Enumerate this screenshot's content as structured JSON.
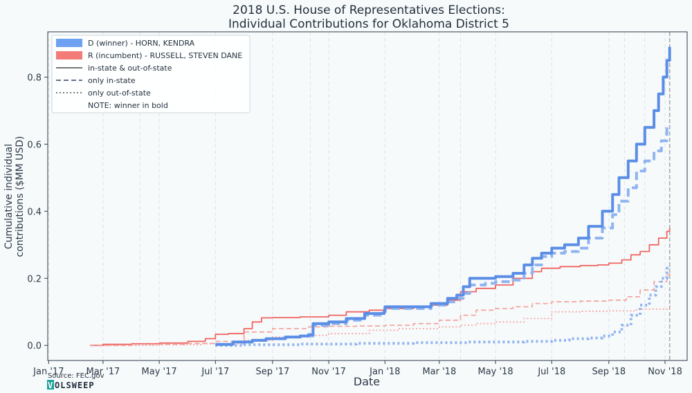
{
  "chart_data": {
    "type": "line",
    "title_line1": "2018 U.S. House of Representatives Elections:",
    "title_line2": "Individual Contributions for Oklahoma District 5",
    "xlabel": "Date",
    "ylabel_line1": "Cumulative individual",
    "ylabel_line2": "contributions ($MM USD)",
    "xlim": [
      "2016-12-31",
      "2018-11-25"
    ],
    "ylim": [
      -0.045,
      0.935
    ],
    "x_ticks": [
      {
        "date": "2017-01-01",
        "label": "Jan '17"
      },
      {
        "date": "2017-03-01",
        "label": "Mar '17"
      },
      {
        "date": "2017-05-01",
        "label": "May '17"
      },
      {
        "date": "2017-07-01",
        "label": "Jul '17"
      },
      {
        "date": "2017-09-01",
        "label": "Sep '17"
      },
      {
        "date": "2017-11-01",
        "label": "Nov '17"
      },
      {
        "date": "2018-01-01",
        "label": "Jan '18"
      },
      {
        "date": "2018-03-01",
        "label": "Mar '18"
      },
      {
        "date": "2018-05-01",
        "label": "May '18"
      },
      {
        "date": "2018-07-01",
        "label": "Jul '18"
      },
      {
        "date": "2018-09-01",
        "label": "Sep '18"
      },
      {
        "date": "2018-11-01",
        "label": "Nov '18"
      }
    ],
    "y_ticks": [
      {
        "value": 0.0,
        "label": "0.0"
      },
      {
        "value": 0.2,
        "label": "0.2"
      },
      {
        "value": 0.4,
        "label": "0.4"
      },
      {
        "value": 0.6,
        "label": "0.6"
      },
      {
        "value": 0.8,
        "label": "0.8"
      }
    ],
    "event_lines": [
      "2017-04-10",
      "2017-10-12",
      "2018-03-24",
      "2018-09-18",
      "2018-10-10"
    ],
    "election_line": "2018-11-06",
    "grid": "vertical dashed",
    "legend_position": "top-left",
    "legend": [
      {
        "kind": "patch",
        "color": "#6fa1f2",
        "label": "D (winner) - HORN, KENDRA"
      },
      {
        "kind": "patch",
        "color": "#f47c78",
        "label": "R (incumbent) - RUSSELL, STEVEN DANE"
      },
      {
        "kind": "solid",
        "color": "#777777",
        "label": "in-state & out-of-state"
      },
      {
        "kind": "dashed",
        "color": "#65708a",
        "label": "only in-state"
      },
      {
        "kind": "dotted",
        "color": "#777777",
        "label": "only out-of-state"
      },
      {
        "kind": "none",
        "color": "",
        "label": "NOTE: winner in bold"
      }
    ],
    "series": [
      {
        "name": "D (winner) - HORN, KENDRA",
        "variant": "in-state & out-of-state",
        "color": "#5b8ee6",
        "style": "solid",
        "bold": true,
        "points": [
          [
            "2017-07-01",
            0.003
          ],
          [
            "2017-07-20",
            0.01
          ],
          [
            "2017-08-10",
            0.015
          ],
          [
            "2017-08-25",
            0.02
          ],
          [
            "2017-09-15",
            0.025
          ],
          [
            "2017-10-01",
            0.028
          ],
          [
            "2017-10-10",
            0.032
          ],
          [
            "2017-10-15",
            0.065
          ],
          [
            "2017-11-01",
            0.07
          ],
          [
            "2017-11-20",
            0.08
          ],
          [
            "2017-12-10",
            0.095
          ],
          [
            "2017-12-31",
            0.1
          ],
          [
            "2018-01-01",
            0.115
          ],
          [
            "2018-02-01",
            0.115
          ],
          [
            "2018-02-20",
            0.125
          ],
          [
            "2018-03-10",
            0.14
          ],
          [
            "2018-03-20",
            0.15
          ],
          [
            "2018-03-27",
            0.175
          ],
          [
            "2018-04-03",
            0.2
          ],
          [
            "2018-04-20",
            0.2
          ],
          [
            "2018-05-01",
            0.205
          ],
          [
            "2018-05-20",
            0.215
          ],
          [
            "2018-06-01",
            0.24
          ],
          [
            "2018-06-10",
            0.26
          ],
          [
            "2018-06-20",
            0.275
          ],
          [
            "2018-07-01",
            0.29
          ],
          [
            "2018-07-15",
            0.3
          ],
          [
            "2018-07-30",
            0.32
          ],
          [
            "2018-08-10",
            0.355
          ],
          [
            "2018-08-25",
            0.4
          ],
          [
            "2018-09-05",
            0.45
          ],
          [
            "2018-09-12",
            0.5
          ],
          [
            "2018-09-22",
            0.55
          ],
          [
            "2018-10-01",
            0.6
          ],
          [
            "2018-10-10",
            0.65
          ],
          [
            "2018-10-20",
            0.7
          ],
          [
            "2018-10-25",
            0.75
          ],
          [
            "2018-10-30",
            0.8
          ],
          [
            "2018-11-03",
            0.85
          ],
          [
            "2018-11-06",
            0.89
          ]
        ]
      },
      {
        "name": "D (winner) - HORN, KENDRA",
        "variant": "only in-state",
        "color": "#8fb4ef",
        "style": "dashed",
        "bold": true,
        "points": [
          [
            "2017-07-01",
            0.003
          ],
          [
            "2017-07-20",
            0.01
          ],
          [
            "2017-08-10",
            0.015
          ],
          [
            "2017-08-25",
            0.02
          ],
          [
            "2017-09-15",
            0.025
          ],
          [
            "2017-10-01",
            0.028
          ],
          [
            "2017-10-15",
            0.06
          ],
          [
            "2017-11-01",
            0.065
          ],
          [
            "2017-11-20",
            0.075
          ],
          [
            "2017-12-10",
            0.09
          ],
          [
            "2017-12-31",
            0.1
          ],
          [
            "2018-01-01",
            0.11
          ],
          [
            "2018-02-01",
            0.11
          ],
          [
            "2018-02-20",
            0.12
          ],
          [
            "2018-03-10",
            0.13
          ],
          [
            "2018-03-20",
            0.14
          ],
          [
            "2018-03-27",
            0.155
          ],
          [
            "2018-04-03",
            0.18
          ],
          [
            "2018-04-20",
            0.185
          ],
          [
            "2018-05-01",
            0.19
          ],
          [
            "2018-05-20",
            0.195
          ],
          [
            "2018-06-01",
            0.215
          ],
          [
            "2018-06-10",
            0.24
          ],
          [
            "2018-06-20",
            0.265
          ],
          [
            "2018-07-01",
            0.275
          ],
          [
            "2018-07-15",
            0.28
          ],
          [
            "2018-07-30",
            0.29
          ],
          [
            "2018-08-10",
            0.32
          ],
          [
            "2018-08-25",
            0.35
          ],
          [
            "2018-09-05",
            0.39
          ],
          [
            "2018-09-12",
            0.43
          ],
          [
            "2018-09-22",
            0.47
          ],
          [
            "2018-10-01",
            0.52
          ],
          [
            "2018-10-10",
            0.55
          ],
          [
            "2018-10-20",
            0.58
          ],
          [
            "2018-10-28",
            0.61
          ],
          [
            "2018-11-03",
            0.65
          ],
          [
            "2018-11-06",
            0.655
          ]
        ]
      },
      {
        "name": "D (winner) - HORN, KENDRA",
        "variant": "only out-of-state",
        "color": "#8fb4ef",
        "style": "dotted",
        "bold": true,
        "points": [
          [
            "2017-07-01",
            0.0
          ],
          [
            "2017-08-01",
            0.002
          ],
          [
            "2017-10-01",
            0.004
          ],
          [
            "2017-12-01",
            0.006
          ],
          [
            "2018-02-01",
            0.008
          ],
          [
            "2018-04-01",
            0.01
          ],
          [
            "2018-06-01",
            0.012
          ],
          [
            "2018-07-01",
            0.015
          ],
          [
            "2018-07-20",
            0.02
          ],
          [
            "2018-08-10",
            0.022
          ],
          [
            "2018-08-25",
            0.028
          ],
          [
            "2018-09-05",
            0.04
          ],
          [
            "2018-09-15",
            0.06
          ],
          [
            "2018-09-25",
            0.09
          ],
          [
            "2018-10-05",
            0.12
          ],
          [
            "2018-10-15",
            0.15
          ],
          [
            "2018-10-22",
            0.175
          ],
          [
            "2018-10-28",
            0.2
          ],
          [
            "2018-11-03",
            0.23
          ],
          [
            "2018-11-06",
            0.235
          ]
        ]
      },
      {
        "name": "R (incumbent) - RUSSELL, STEVEN DANE",
        "variant": "in-state & out-of-state",
        "color": "#ef6461",
        "style": "solid",
        "bold": false,
        "points": [
          [
            "2017-02-15",
            0.0
          ],
          [
            "2017-03-01",
            0.003
          ],
          [
            "2017-04-01",
            0.005
          ],
          [
            "2017-05-01",
            0.007
          ],
          [
            "2017-06-01",
            0.012
          ],
          [
            "2017-06-20",
            0.02
          ],
          [
            "2017-07-01",
            0.033
          ],
          [
            "2017-07-15",
            0.035
          ],
          [
            "2017-08-01",
            0.05
          ],
          [
            "2017-08-10",
            0.07
          ],
          [
            "2017-08-20",
            0.082
          ],
          [
            "2017-09-01",
            0.083
          ],
          [
            "2017-10-01",
            0.085
          ],
          [
            "2017-11-01",
            0.09
          ],
          [
            "2017-11-20",
            0.1
          ],
          [
            "2017-12-15",
            0.105
          ],
          [
            "2018-01-01",
            0.11
          ],
          [
            "2018-02-01",
            0.115
          ],
          [
            "2018-02-20",
            0.12
          ],
          [
            "2018-03-10",
            0.135
          ],
          [
            "2018-03-24",
            0.16
          ],
          [
            "2018-04-10",
            0.17
          ],
          [
            "2018-05-01",
            0.18
          ],
          [
            "2018-05-20",
            0.2
          ],
          [
            "2018-06-10",
            0.22
          ],
          [
            "2018-06-20",
            0.23
          ],
          [
            "2018-07-10",
            0.235
          ],
          [
            "2018-08-01",
            0.238
          ],
          [
            "2018-08-20",
            0.24
          ],
          [
            "2018-09-01",
            0.245
          ],
          [
            "2018-09-15",
            0.255
          ],
          [
            "2018-09-25",
            0.27
          ],
          [
            "2018-10-05",
            0.28
          ],
          [
            "2018-10-15",
            0.3
          ],
          [
            "2018-10-25",
            0.32
          ],
          [
            "2018-11-03",
            0.34
          ],
          [
            "2018-11-06",
            0.35
          ]
        ]
      },
      {
        "name": "R (incumbent) - RUSSELL, STEVEN DANE",
        "variant": "only in-state",
        "color": "#f39c98",
        "style": "dashed",
        "bold": false,
        "points": [
          [
            "2017-02-15",
            0.0
          ],
          [
            "2017-04-01",
            0.003
          ],
          [
            "2017-06-01",
            0.006
          ],
          [
            "2017-07-01",
            0.012
          ],
          [
            "2017-08-01",
            0.04
          ],
          [
            "2017-09-01",
            0.05
          ],
          [
            "2017-10-10",
            0.055
          ],
          [
            "2017-11-01",
            0.057
          ],
          [
            "2017-12-01",
            0.058
          ],
          [
            "2018-01-01",
            0.06
          ],
          [
            "2018-02-01",
            0.065
          ],
          [
            "2018-03-01",
            0.075
          ],
          [
            "2018-03-24",
            0.09
          ],
          [
            "2018-04-10",
            0.105
          ],
          [
            "2018-05-01",
            0.11
          ],
          [
            "2018-05-20",
            0.115
          ],
          [
            "2018-06-10",
            0.125
          ],
          [
            "2018-07-01",
            0.13
          ],
          [
            "2018-08-01",
            0.132
          ],
          [
            "2018-09-01",
            0.135
          ],
          [
            "2018-09-20",
            0.145
          ],
          [
            "2018-10-05",
            0.165
          ],
          [
            "2018-10-20",
            0.19
          ],
          [
            "2018-11-03",
            0.21
          ],
          [
            "2018-11-06",
            0.22
          ]
        ]
      },
      {
        "name": "R (incumbent) - RUSSELL, STEVEN DANE",
        "variant": "only out-of-state",
        "color": "#f39c98",
        "style": "dotted",
        "bold": false,
        "points": [
          [
            "2017-02-15",
            0.0
          ],
          [
            "2017-05-01",
            0.002
          ],
          [
            "2017-06-15",
            0.005
          ],
          [
            "2017-08-01",
            0.015
          ],
          [
            "2017-09-01",
            0.025
          ],
          [
            "2017-10-01",
            0.03
          ],
          [
            "2017-11-01",
            0.035
          ],
          [
            "2017-12-15",
            0.045
          ],
          [
            "2018-01-15",
            0.05
          ],
          [
            "2018-03-01",
            0.055
          ],
          [
            "2018-03-24",
            0.06
          ],
          [
            "2018-04-10",
            0.065
          ],
          [
            "2018-05-01",
            0.07
          ],
          [
            "2018-06-01",
            0.08
          ],
          [
            "2018-07-01",
            0.1
          ],
          [
            "2018-08-01",
            0.102
          ],
          [
            "2018-09-01",
            0.103
          ],
          [
            "2018-10-01",
            0.108
          ],
          [
            "2018-11-06",
            0.12
          ]
        ]
      }
    ]
  },
  "source": "Source: FEC.gov",
  "logo": {
    "first_letter": "V",
    "rest": "OLSWEEP"
  }
}
